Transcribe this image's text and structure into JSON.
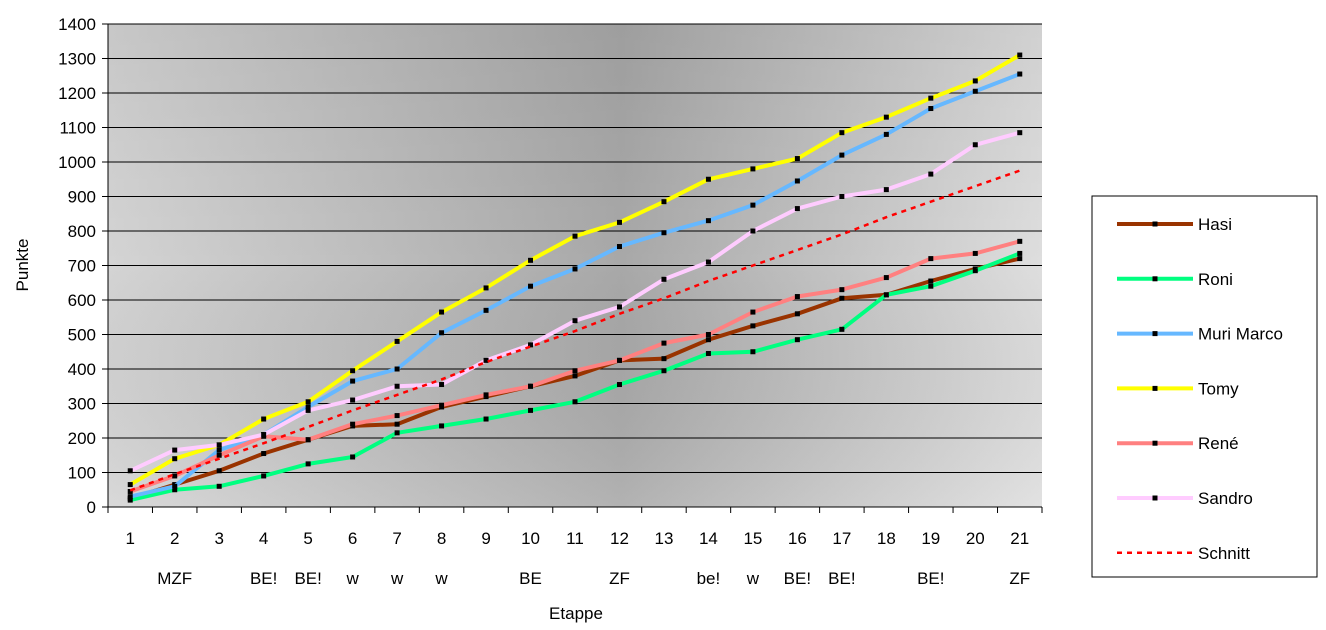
{
  "chart_data": {
    "type": "line",
    "title": "",
    "xlabel": "Etappe",
    "ylabel": "Punkte",
    "ylim": [
      0,
      1400
    ],
    "ystep": 100,
    "grid": true,
    "legend_position": "right",
    "x": [
      "1",
      "2",
      "3",
      "4",
      "5",
      "6",
      "7",
      "8",
      "9",
      "10",
      "11",
      "12",
      "13",
      "14",
      "15",
      "16",
      "17",
      "18",
      "19",
      "20",
      "21"
    ],
    "stage_notes": [
      "",
      "MZF",
      "",
      "BE!",
      "BE!",
      "w",
      "w",
      "w",
      "",
      "BE",
      "",
      "ZF",
      "",
      "be!",
      "w",
      "BE!",
      "BE!",
      "",
      "BE!",
      "",
      "ZF"
    ],
    "series": [
      {
        "name": "Hasi",
        "color": "#993300",
        "dashed": false,
        "values": [
          25,
          65,
          105,
          155,
          195,
          235,
          240,
          290,
          320,
          350,
          380,
          425,
          430,
          485,
          525,
          560,
          605,
          615,
          655,
          690,
          720
        ]
      },
      {
        "name": "Roni",
        "color": "#00FF80",
        "dashed": false,
        "values": [
          20,
          50,
          60,
          90,
          125,
          145,
          215,
          235,
          255,
          280,
          305,
          355,
          395,
          445,
          450,
          485,
          515,
          615,
          640,
          685,
          735
        ]
      },
      {
        "name": "Muri Marco",
        "color": "#66B8FF",
        "dashed": false,
        "values": [
          30,
          60,
          165,
          210,
          290,
          365,
          400,
          505,
          570,
          640,
          690,
          755,
          795,
          830,
          875,
          945,
          1020,
          1080,
          1155,
          1205,
          1255
        ]
      },
      {
        "name": "Tomy",
        "color": "#FFFF00",
        "dashed": false,
        "values": [
          65,
          140,
          180,
          255,
          305,
          395,
          480,
          565,
          635,
          715,
          785,
          825,
          885,
          950,
          980,
          1010,
          1085,
          1130,
          1185,
          1235,
          1310
        ]
      },
      {
        "name": "René",
        "color": "#FF8080",
        "dashed": false,
        "values": [
          45,
          90,
          150,
          205,
          195,
          240,
          265,
          295,
          325,
          350,
          395,
          425,
          475,
          500,
          565,
          610,
          630,
          665,
          720,
          735,
          770
        ]
      },
      {
        "name": "Sandro",
        "color": "#FFCCFF",
        "dashed": false,
        "values": [
          105,
          165,
          180,
          210,
          280,
          310,
          350,
          355,
          425,
          470,
          540,
          580,
          660,
          710,
          800,
          865,
          900,
          920,
          965,
          1050,
          1085
        ]
      },
      {
        "name": "Schnitt",
        "color": "#FF0000",
        "dashed": true,
        "values": [
          48,
          95,
          140,
          185,
          232,
          280,
          325,
          370,
          420,
          465,
          510,
          560,
          605,
          655,
          700,
          745,
          790,
          840,
          885,
          930,
          975
        ]
      }
    ]
  }
}
